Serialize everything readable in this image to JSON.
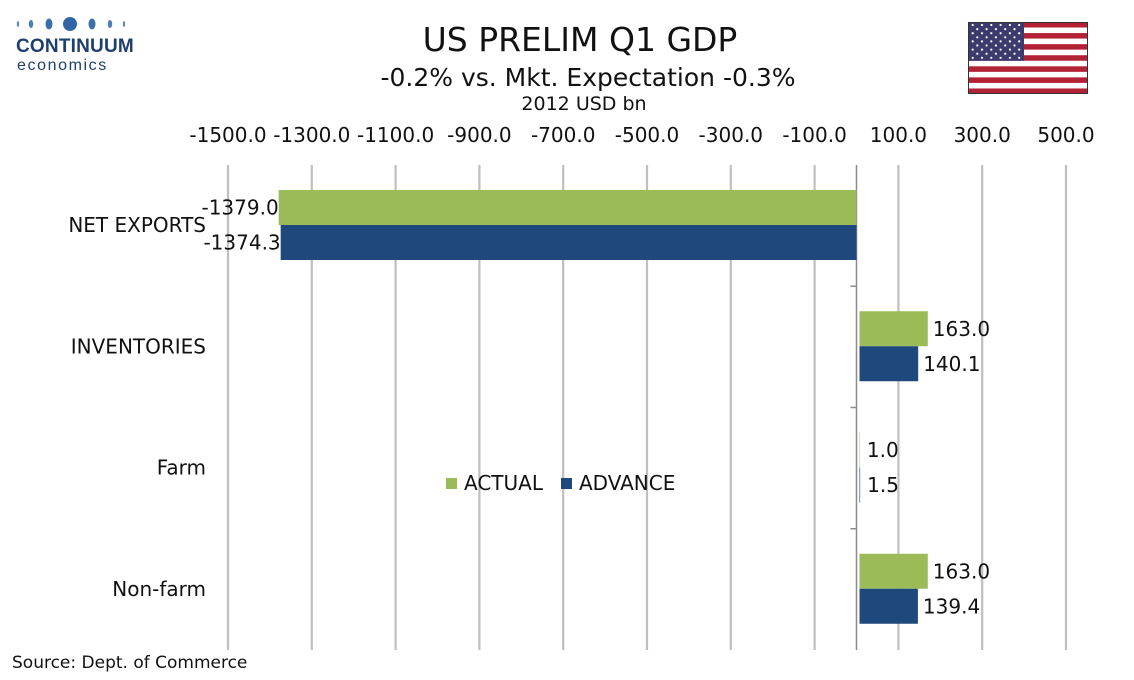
{
  "logo": {
    "word1": "CONTINUUM",
    "word2": "economics"
  },
  "flag_icon": "us-flag-icon",
  "chart_data": {
    "type": "bar",
    "orientation": "horizontal",
    "title": "US PRELIM Q1 GDP",
    "subtitle": "-0.2% vs. Mkt. Expectation -0.3%",
    "units": "2012 USD bn",
    "categories": [
      "NET EXPORTS",
      "INVENTORIES",
      "Farm",
      "Non-farm"
    ],
    "series": [
      {
        "name": "ACTUAL",
        "color": "#9bbb59",
        "values": [
          -1379.0,
          163.0,
          1.0,
          163.0
        ],
        "labels": [
          "-1379.0",
          "163.0",
          "1.0",
          "163.0"
        ]
      },
      {
        "name": "ADVANCE",
        "color": "#1f497d",
        "values": [
          -1374.3,
          140.1,
          1.5,
          139.4
        ],
        "labels": [
          "-1374.3",
          "140.1",
          "1.5",
          "139.4"
        ]
      }
    ],
    "xlim": [
      -1500,
      500
    ],
    "ticks": [
      -1500,
      -1300,
      -1100,
      -900,
      -700,
      -500,
      -300,
      -100,
      100,
      300,
      500
    ],
    "tick_labels": [
      "-1500.0",
      "-1300.0",
      "-1100.0",
      "-900.0",
      "-700.0",
      "-500.0",
      "-300.0",
      "-100.0",
      "100.0",
      "300.0",
      "500.0"
    ],
    "axis_position": "top",
    "grid": true,
    "legend_position": "center"
  },
  "source": "Source: Dept. of Commerce"
}
